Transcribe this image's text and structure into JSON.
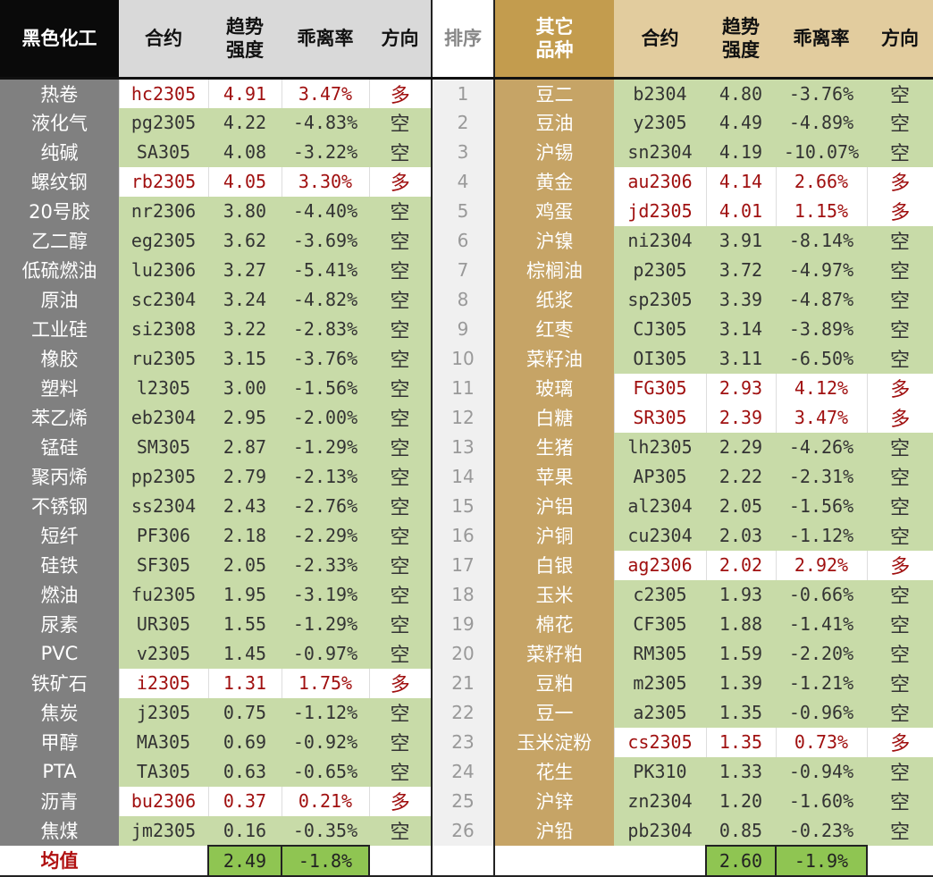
{
  "headers": {
    "left_group": "黑色化工",
    "contract": "合约",
    "strength": "趋势\n强度",
    "deviation": "乖离率",
    "direction": "方向",
    "rank": "排序",
    "right_group": "其它\n品种"
  },
  "colors": {
    "short_bg": "#c8dba8",
    "long_text": "#a01010",
    "left_name_bg": "#808080",
    "right_name_bg": "#c6a466",
    "avg_bg": "#8fc552"
  },
  "rows": [
    {
      "rank": "1",
      "left": [
        "热卷",
        "hc2305",
        "4.91",
        "3.47%",
        "多"
      ],
      "right": [
        "豆二",
        "b2304",
        "4.80",
        "-3.76%",
        "空"
      ]
    },
    {
      "rank": "2",
      "left": [
        "液化气",
        "pg2305",
        "4.22",
        "-4.83%",
        "空"
      ],
      "right": [
        "豆油",
        "y2305",
        "4.49",
        "-4.89%",
        "空"
      ]
    },
    {
      "rank": "3",
      "left": [
        "纯碱",
        "SA305",
        "4.08",
        "-3.22%",
        "空"
      ],
      "right": [
        "沪锡",
        "sn2304",
        "4.19",
        "-10.07%",
        "空"
      ]
    },
    {
      "rank": "4",
      "left": [
        "螺纹钢",
        "rb2305",
        "4.05",
        "3.30%",
        "多"
      ],
      "right": [
        "黄金",
        "au2306",
        "4.14",
        "2.66%",
        "多"
      ]
    },
    {
      "rank": "5",
      "left": [
        "20号胶",
        "nr2306",
        "3.80",
        "-4.40%",
        "空"
      ],
      "right": [
        "鸡蛋",
        "jd2305",
        "4.01",
        "1.15%",
        "多"
      ]
    },
    {
      "rank": "6",
      "left": [
        "乙二醇",
        "eg2305",
        "3.62",
        "-3.69%",
        "空"
      ],
      "right": [
        "沪镍",
        "ni2304",
        "3.91",
        "-8.14%",
        "空"
      ]
    },
    {
      "rank": "7",
      "left": [
        "低硫燃油",
        "lu2306",
        "3.27",
        "-5.41%",
        "空"
      ],
      "right": [
        "棕榈油",
        "p2305",
        "3.72",
        "-4.97%",
        "空"
      ]
    },
    {
      "rank": "8",
      "left": [
        "原油",
        "sc2304",
        "3.24",
        "-4.82%",
        "空"
      ],
      "right": [
        "纸浆",
        "sp2305",
        "3.39",
        "-4.87%",
        "空"
      ]
    },
    {
      "rank": "9",
      "left": [
        "工业硅",
        "si2308",
        "3.22",
        "-2.83%",
        "空"
      ],
      "right": [
        "红枣",
        "CJ305",
        "3.14",
        "-3.89%",
        "空"
      ]
    },
    {
      "rank": "10",
      "left": [
        "橡胶",
        "ru2305",
        "3.15",
        "-3.76%",
        "空"
      ],
      "right": [
        "菜籽油",
        "OI305",
        "3.11",
        "-6.50%",
        "空"
      ]
    },
    {
      "rank": "11",
      "left": [
        "塑料",
        "l2305",
        "3.00",
        "-1.56%",
        "空"
      ],
      "right": [
        "玻璃",
        "FG305",
        "2.93",
        "4.12%",
        "多"
      ]
    },
    {
      "rank": "12",
      "left": [
        "苯乙烯",
        "eb2304",
        "2.95",
        "-2.00%",
        "空"
      ],
      "right": [
        "白糖",
        "SR305",
        "2.39",
        "3.47%",
        "多"
      ]
    },
    {
      "rank": "13",
      "left": [
        "锰硅",
        "SM305",
        "2.87",
        "-1.29%",
        "空"
      ],
      "right": [
        "生猪",
        "lh2305",
        "2.29",
        "-4.26%",
        "空"
      ]
    },
    {
      "rank": "14",
      "left": [
        "聚丙烯",
        "pp2305",
        "2.79",
        "-2.13%",
        "空"
      ],
      "right": [
        "苹果",
        "AP305",
        "2.22",
        "-2.31%",
        "空"
      ]
    },
    {
      "rank": "15",
      "left": [
        "不锈钢",
        "ss2304",
        "2.43",
        "-2.76%",
        "空"
      ],
      "right": [
        "沪铝",
        "al2304",
        "2.05",
        "-1.56%",
        "空"
      ]
    },
    {
      "rank": "16",
      "left": [
        "短纤",
        "PF306",
        "2.18",
        "-2.29%",
        "空"
      ],
      "right": [
        "沪铜",
        "cu2304",
        "2.03",
        "-1.12%",
        "空"
      ]
    },
    {
      "rank": "17",
      "left": [
        "硅铁",
        "SF305",
        "2.05",
        "-2.33%",
        "空"
      ],
      "right": [
        "白银",
        "ag2306",
        "2.02",
        "2.92%",
        "多"
      ]
    },
    {
      "rank": "18",
      "left": [
        "燃油",
        "fu2305",
        "1.95",
        "-3.19%",
        "空"
      ],
      "right": [
        "玉米",
        "c2305",
        "1.93",
        "-0.66%",
        "空"
      ]
    },
    {
      "rank": "19",
      "left": [
        "尿素",
        "UR305",
        "1.55",
        "-1.29%",
        "空"
      ],
      "right": [
        "棉花",
        "CF305",
        "1.88",
        "-1.41%",
        "空"
      ]
    },
    {
      "rank": "20",
      "left": [
        "PVC",
        "v2305",
        "1.45",
        "-0.97%",
        "空"
      ],
      "right": [
        "菜籽粕",
        "RM305",
        "1.59",
        "-2.20%",
        "空"
      ]
    },
    {
      "rank": "21",
      "left": [
        "铁矿石",
        "i2305",
        "1.31",
        "1.75%",
        "多"
      ],
      "right": [
        "豆粕",
        "m2305",
        "1.39",
        "-1.21%",
        "空"
      ]
    },
    {
      "rank": "22",
      "left": [
        "焦炭",
        "j2305",
        "0.75",
        "-1.12%",
        "空"
      ],
      "right": [
        "豆一",
        "a2305",
        "1.35",
        "-0.96%",
        "空"
      ]
    },
    {
      "rank": "23",
      "left": [
        "甲醇",
        "MA305",
        "0.69",
        "-0.92%",
        "空"
      ],
      "right": [
        "玉米淀粉",
        "cs2305",
        "1.35",
        "0.73%",
        "多"
      ]
    },
    {
      "rank": "24",
      "left": [
        "PTA",
        "TA305",
        "0.63",
        "-0.65%",
        "空"
      ],
      "right": [
        "花生",
        "PK310",
        "1.33",
        "-0.94%",
        "空"
      ]
    },
    {
      "rank": "25",
      "left": [
        "沥青",
        "bu2306",
        "0.37",
        "0.21%",
        "多"
      ],
      "right": [
        "沪锌",
        "zn2304",
        "1.20",
        "-1.60%",
        "空"
      ]
    },
    {
      "rank": "26",
      "left": [
        "焦煤",
        "jm2305",
        "0.16",
        "-0.35%",
        "空"
      ],
      "right": [
        "沪铅",
        "pb2304",
        "0.85",
        "-0.23%",
        "空"
      ]
    }
  ],
  "average": {
    "label": "均值",
    "left_strength": "2.49",
    "left_deviation": "-1.8%",
    "right_strength": "2.60",
    "right_deviation": "-1.9%"
  }
}
